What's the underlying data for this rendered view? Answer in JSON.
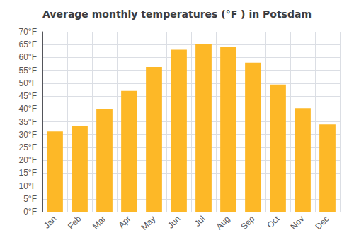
{
  "chart_data": {
    "type": "bar",
    "title": "Average monthly temperatures (°F ) in Potsdam",
    "categories": [
      "Jan",
      "Feb",
      "Mar",
      "Apr",
      "May",
      "Jun",
      "Jul",
      "Aug",
      "Sep",
      "Oct",
      "Nov",
      "Dec"
    ],
    "values": [
      31.2,
      33.3,
      40.0,
      47.0,
      56.3,
      63.0,
      65.3,
      64.2,
      58.0,
      49.5,
      40.3,
      34.0
    ],
    "color": "#FDB827",
    "ylim": [
      0,
      70
    ],
    "yticks": [
      {
        "value": 0,
        "label": "0°F"
      },
      {
        "value": 5,
        "label": "5°F"
      },
      {
        "value": 10,
        "label": "10°F"
      },
      {
        "value": 15,
        "label": "15°F"
      },
      {
        "value": 20,
        "label": "20°F"
      },
      {
        "value": 25,
        "label": "25°F"
      },
      {
        "value": 30,
        "label": "30°F"
      },
      {
        "value": 35,
        "label": "35°F"
      },
      {
        "value": 40,
        "label": "40°F"
      },
      {
        "value": 45,
        "label": "45°F"
      },
      {
        "value": 50,
        "label": "50°F"
      },
      {
        "value": 55,
        "label": "55°F"
      },
      {
        "value": 60,
        "label": "60°F"
      },
      {
        "value": 65,
        "label": "65°F"
      },
      {
        "value": 70,
        "label": "70°F"
      }
    ],
    "grid": true
  }
}
